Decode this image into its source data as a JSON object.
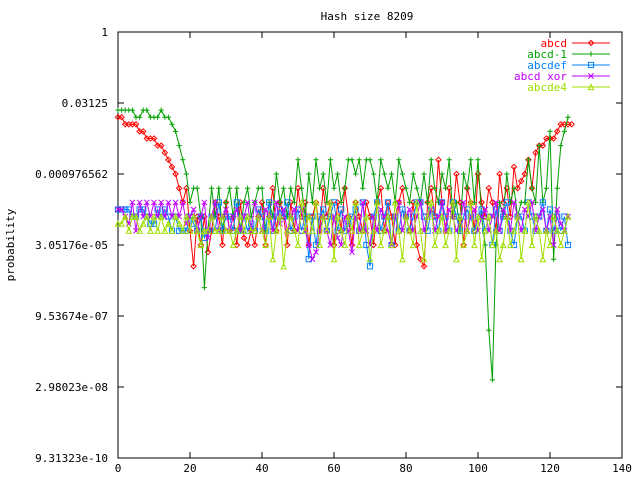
{
  "chart_data": {
    "type": "line",
    "title": "Hash size 8209",
    "xlabel": "",
    "ylabel": "probability",
    "xlim": [
      0,
      140
    ],
    "ylim_log2": [
      -30,
      0
    ],
    "y_scale": "log2",
    "x_ticks": [
      0,
      20,
      40,
      60,
      80,
      100,
      120,
      140
    ],
    "x_tick_labels": [
      "0",
      "20",
      "40",
      "60",
      "80",
      "100",
      "120",
      "140"
    ],
    "y_ticks_log2": [
      0,
      -5,
      -10,
      -15,
      -20,
      -25,
      -30
    ],
    "y_tick_labels": [
      "1",
      "0.03125",
      "0.000976562",
      "3.05176e-05",
      "9.53674e-07",
      "2.98023e-08",
      "9.31323e-10"
    ],
    "legend_position": "top-right",
    "grid": false,
    "series": [
      {
        "name": "abcd",
        "color": "#ff0000",
        "marker": "diamond",
        "y_log2": [
          -6.0,
          -6.0,
          -6.5,
          -6.5,
          -6.5,
          -6.5,
          -7,
          -7,
          -7.5,
          -7.5,
          -7.5,
          -8,
          -8,
          -8.5,
          -9,
          -9.5,
          -10,
          -11,
          -12,
          -11,
          -14,
          -16.5,
          -13,
          -15,
          -13,
          -15.5,
          -14,
          -12,
          -13,
          -15,
          -12,
          -14,
          -13,
          -15,
          -12,
          -14.5,
          -15,
          -14,
          -15,
          -13,
          -12,
          -15,
          -13,
          -11,
          -14,
          -12,
          -13,
          -15,
          -12,
          -14,
          -11,
          -13,
          -12,
          -15,
          -13,
          -12,
          -14,
          -11,
          -13,
          -12,
          -15,
          -12,
          -14,
          -11,
          -13,
          -15,
          -12,
          -13,
          -14,
          -12,
          -13,
          -15,
          -12,
          -11,
          -14,
          -12,
          -13,
          -15,
          -12,
          -11,
          -13,
          -14,
          -12,
          -15,
          -16,
          -16.5,
          -12,
          -11,
          -13,
          -9,
          -12,
          -14,
          -11,
          -13,
          -10,
          -12,
          -15,
          -11,
          -12,
          -14,
          -10,
          -12,
          -13,
          -11,
          -12,
          -14,
          -10,
          -12,
          -11,
          -13,
          -9.5,
          -11,
          -10.5,
          -10,
          -9,
          -11,
          -8.5,
          -8,
          -8,
          -7.5,
          -7.5,
          -7.5,
          -7,
          -6.5,
          -6.5,
          -6.5,
          -6.5
        ]
      },
      {
        "name": "abcd-1",
        "color": "#00a000",
        "marker": "plus",
        "y_log2": [
          -5.5,
          -5.5,
          -5.5,
          -5.5,
          -5.5,
          -6,
          -6,
          -5.5,
          -5.5,
          -6,
          -6,
          -6,
          -5.5,
          -6,
          -6,
          -6.5,
          -7,
          -8,
          -9,
          -10,
          -12,
          -11,
          -11,
          -13,
          -18,
          -14,
          -11,
          -13,
          -11,
          -14,
          -12,
          -11,
          -13,
          -11,
          -14,
          -12,
          -11,
          -13,
          -12,
          -11,
          -11,
          -14,
          -12,
          -13,
          -10,
          -12,
          -11,
          -13,
          -11,
          -12,
          -9,
          -11,
          -13,
          -10,
          -12,
          -9,
          -11,
          -10,
          -12,
          -9,
          -11,
          -10,
          -12,
          -11,
          -9,
          -9,
          -10,
          -9,
          -11,
          -9,
          -9,
          -10,
          -12,
          -9,
          -10,
          -11,
          -10,
          -12,
          -9,
          -10,
          -11,
          -12,
          -10,
          -11,
          -12,
          -10,
          -12,
          -9,
          -11,
          -12,
          -10,
          -11,
          -9,
          -13,
          -12,
          -14,
          -10,
          -11,
          -9,
          -12,
          -9,
          -13,
          -15,
          -21,
          -24.5,
          -15,
          -12,
          -13,
          -10,
          -12,
          -11,
          -13,
          -12,
          -12,
          -9,
          -11,
          -12,
          -8,
          -12,
          -11,
          -7,
          -16,
          -11,
          -8,
          -7,
          -6
        ]
      },
      {
        "name": "abcdef",
        "color": "#0080ff",
        "marker": "square",
        "y_log2": [
          -12.5,
          -12.5,
          -12.5,
          -12.5,
          -13,
          -13,
          -12.5,
          -12.5,
          -13,
          -13.5,
          -13.5,
          -12.5,
          -13,
          -12.5,
          -13,
          -14,
          -13,
          -14,
          -14,
          -14,
          -13,
          -13.5,
          -14,
          -13,
          -14.5,
          -14,
          -13,
          -14,
          -12,
          -14,
          -13,
          -13,
          -14,
          -12,
          -14,
          -13,
          -14,
          -13.5,
          -14,
          -12.5,
          -13,
          -14,
          -12,
          -14,
          -13,
          -12.5,
          -13,
          -12,
          -14,
          -13,
          -12.5,
          -14,
          -13,
          -16,
          -13,
          -15,
          -13,
          -12.5,
          -14,
          -13,
          -12,
          -14,
          -12.5,
          -14,
          -13.5,
          -13,
          -12.5,
          -14,
          -12,
          -15,
          -16.5,
          -13,
          -12,
          -14,
          -13,
          -12,
          -15,
          -13,
          -14,
          -12.5,
          -13,
          -14,
          -13,
          -12,
          -12,
          -13,
          -14,
          -12.5,
          -13,
          -14,
          -12,
          -13,
          -14,
          -12,
          -13,
          -14,
          -13,
          -12.5,
          -13,
          -14,
          -13,
          -12.5,
          -14,
          -13,
          -15,
          -12.5,
          -14,
          -13,
          -12,
          -14,
          -15,
          -13,
          -13,
          -14,
          -12,
          -13,
          -14,
          -13,
          -12,
          -14,
          -12.5,
          -14,
          -13,
          -14,
          -13,
          -15
        ]
      },
      {
        "name": "abcd xor",
        "color": "#c000ff",
        "marker": "cross",
        "y_log2": [
          -12.5,
          -12.5,
          -13,
          -13.5,
          -12,
          -14,
          -12,
          -13,
          -12,
          -13,
          -12,
          -13,
          -12,
          -13,
          -12,
          -13,
          -12,
          -13,
          -12,
          -13.5,
          -13,
          -12.5,
          -14,
          -13,
          -12,
          -14.5,
          -13,
          -12,
          -14,
          -13,
          -12.5,
          -14,
          -13,
          -12.5,
          -14,
          -13,
          -12,
          -14,
          -12,
          -13,
          -14,
          -12.5,
          -13,
          -14,
          -12,
          -13.5,
          -12.5,
          -14,
          -13,
          -12.5,
          -14,
          -12.5,
          -14,
          -15,
          -16,
          -15.5,
          -14,
          -13,
          -14,
          -15,
          -13,
          -14.5,
          -15,
          -13,
          -14,
          -15.5,
          -13,
          -14,
          -12,
          -14,
          -15,
          -13,
          -14,
          -12.5,
          -13,
          -14,
          -15,
          -13,
          -12,
          -14,
          -13,
          -12.5,
          -14,
          -13,
          -12,
          -14,
          -13,
          -12.5,
          -14,
          -13,
          -12,
          -14,
          -12.5,
          -13,
          -14,
          -13.5,
          -12,
          -14,
          -13,
          -12.5,
          -14,
          -13,
          -12.5,
          -14,
          -13,
          -12,
          -14,
          -12.5,
          -13,
          -14,
          -12,
          -13,
          -14,
          -12.5,
          -13,
          -12,
          -14,
          -13,
          -12.5,
          -14,
          -13,
          -15,
          -12.5,
          -13.5,
          -14,
          -13
        ]
      },
      {
        "name": "abcde4",
        "color": "#a0e000",
        "marker": "triangle",
        "y_log2": [
          -13.5,
          -13.5,
          -13,
          -14,
          -13,
          -13,
          -14,
          -13.5,
          -13,
          -14,
          -13,
          -14,
          -13,
          -14,
          -13.5,
          -14,
          -13,
          -13.5,
          -14,
          -13,
          -14,
          -13,
          -14,
          -15,
          -14,
          -14,
          -13,
          -14,
          -14,
          -13,
          -14,
          -14,
          -15,
          -14,
          -13,
          -14,
          -13,
          -14,
          -14,
          -13,
          -14,
          -15,
          -13,
          -16,
          -14,
          -13,
          -16.5,
          -14,
          -13,
          -14,
          -15,
          -12,
          -14,
          -13,
          -14,
          -12,
          -15,
          -13,
          -14,
          -12,
          -16,
          -13,
          -14,
          -15,
          -13,
          -14,
          -12,
          -15,
          -14,
          -13,
          -16,
          -14,
          -12,
          -15,
          -14,
          -13,
          -15,
          -12,
          -14,
          -16,
          -13,
          -14,
          -15,
          -12,
          -14,
          -16,
          -13,
          -12,
          -15,
          -14,
          -13,
          -15,
          -14,
          -12,
          -16,
          -13,
          -15,
          -14,
          -12,
          -15,
          -13,
          -16,
          -14,
          -13,
          -15,
          -14,
          -16,
          -15,
          -13,
          -15,
          -14,
          -13,
          -16,
          -14,
          -12,
          -15,
          -13,
          -14,
          -16,
          -14,
          -15,
          -13,
          -14,
          -15,
          -14,
          -13
        ]
      }
    ]
  }
}
